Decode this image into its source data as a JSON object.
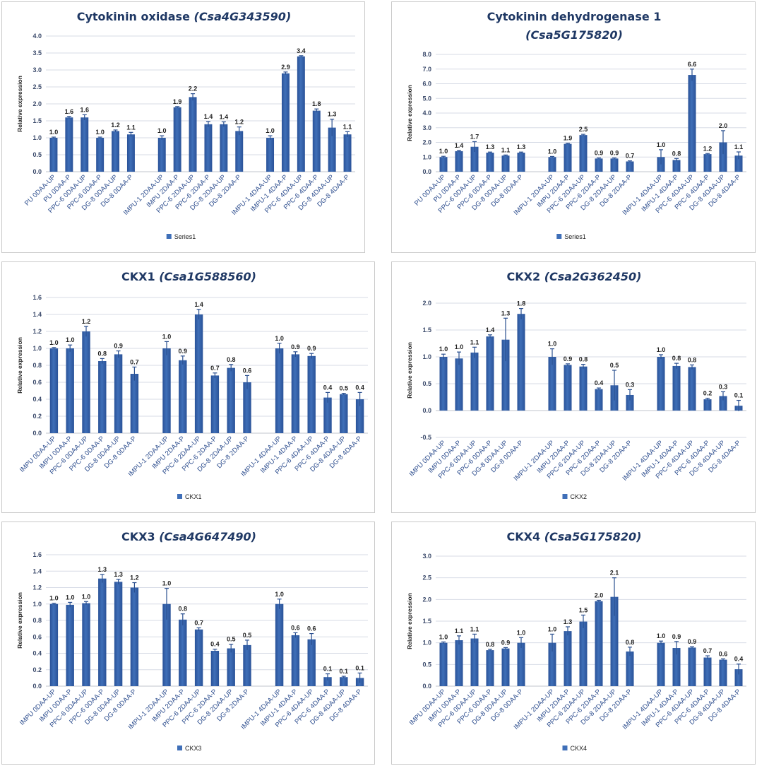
{
  "colors": {
    "bar": "#3f6fb8",
    "bar_dark": "#2a5298",
    "error": "#2a4f8f",
    "title": "#1f3864"
  },
  "chart_data": [
    {
      "type": "bar",
      "title": "Cytokinin oxidase ",
      "title_gene": "(Csa4G343590)",
      "ylabel": "Relative expression",
      "ylim": [
        0,
        4.0
      ],
      "yticks": [
        "0.0",
        "0.5",
        "1.0",
        "1.5",
        "2.0",
        "2.5",
        "3.0",
        "3.5",
        "4.0"
      ],
      "legend": "Series1",
      "groups": [
        6,
        6,
        6
      ],
      "categories": [
        "PU 0DAA-UP",
        "PU 0DAA-P",
        "PPC-6 0DAA-UP",
        "PPC-6 0DAA-P",
        "DG-8 0DAA-UP",
        "DG-8 0DAA-P",
        "IMPU-1 2DAA-UP",
        "IMPU 2DAA-P",
        "PPC-6 2DAA-UP",
        "PPC-6 2DAA-P",
        "DG-8 2DAA-UP",
        "DG-8 2DAA-P",
        "IMPU-1 4DAA-UP",
        "IMPU-1 4DAA-P",
        "PPC-6 4DAA-UP",
        "PPC-6 4DAA-P",
        "DG-8 4DAA-UP",
        "DG-8 4DAA-P"
      ],
      "values": [
        1.0,
        1.6,
        1.6,
        1.0,
        1.2,
        1.1,
        1.0,
        1.9,
        2.2,
        1.4,
        1.4,
        1.2,
        1.0,
        2.9,
        3.4,
        1.8,
        1.3,
        1.1
      ],
      "labels": [
        "1.0",
        "1.6",
        "1.6",
        "1.0",
        "1.2",
        "1.1",
        "1.0",
        "1.9",
        "2.2",
        "1.4",
        "1.4",
        "1.2",
        "1.0",
        "2.9",
        "3.4",
        "1.8",
        "1.3",
        "1.1"
      ],
      "errors": [
        0.02,
        0.03,
        0.08,
        0.02,
        0.03,
        0.06,
        0.06,
        0.02,
        0.1,
        0.08,
        0.07,
        0.12,
        0.06,
        0.04,
        0.02,
        0.05,
        0.25,
        0.08
      ]
    },
    {
      "type": "bar",
      "title": "Cytokinin dehydrogenase 1",
      "title_gene": "(Csa5G175820)",
      "ylabel": "Relative expression",
      "ylim": [
        0,
        8.0
      ],
      "yticks": [
        "0.0",
        "1.0",
        "2.0",
        "3.0",
        "4.0",
        "5.0",
        "6.0",
        "7.0",
        "8.0"
      ],
      "legend": "Series1",
      "groups": [
        6,
        6,
        6
      ],
      "categories": [
        "PU 0DAA-UP",
        "PU 0DAA-P",
        "PPC-6 0DAA-UP",
        "PPC-6 0DAA-P",
        "DG-8 0DAA-UP",
        "DG-8 0DAA-P",
        "IMPU-1 2DAA-UP",
        "IMPU 2DAA-P",
        "PPC-6 2DAA-UP",
        "PPC-6 2DAA-P",
        "DG-8 2DAA-UP",
        "DG-8 2DAA-P",
        "IMPU-1 4DAA-UP",
        "IMPU-1 4DAA-P",
        "PPC-6 4DAA-UP",
        "PPC-6 4DAA-P",
        "DG-8 4DAA-UP",
        "DG-8 4DAA-P"
      ],
      "values": [
        1.0,
        1.4,
        1.7,
        1.3,
        1.1,
        1.3,
        1.0,
        1.9,
        2.5,
        0.9,
        0.9,
        0.7,
        1.0,
        0.8,
        6.6,
        1.2,
        2.0,
        1.1
      ],
      "labels": [
        "1.0",
        "1.4",
        "1.7",
        "1.3",
        "1.1",
        "1.3",
        "1.0",
        "1.9",
        "2.5",
        "0.9",
        "0.9",
        "0.7",
        "1.0",
        "0.8",
        "6.6",
        "1.2",
        "2.0",
        "1.1"
      ],
      "errors": [
        0.05,
        0.05,
        0.35,
        0.04,
        0.04,
        0.04,
        0.04,
        0.04,
        0.05,
        0.04,
        0.04,
        0.04,
        0.5,
        0.1,
        0.4,
        0.04,
        0.8,
        0.25
      ]
    },
    {
      "type": "bar",
      "title": "CKX1 ",
      "title_gene": "(Csa1G588560)",
      "ylabel": "Relative expression",
      "ylim": [
        0,
        1.6
      ],
      "yticks": [
        "0.0",
        "0.2",
        "0.4",
        "0.6",
        "0.8",
        "1.0",
        "1.2",
        "1.4",
        "1.6"
      ],
      "legend": "CKX1",
      "groups": [
        6,
        6,
        6
      ],
      "categories": [
        "IMPU 0DAA-UP",
        "IMPU 0DAA-P",
        "PPC-6 0DAA-UP",
        "PPC-6 0DAA-P",
        "DG-8 0DAA-UP",
        "DG-8 0DAA-P",
        "IMPU-1 2DAA-UP",
        "IMPU 2DAA-P",
        "PPC-6 2DAA-UP",
        "PPC-6 2DAA-P",
        "DG-8 2DAA-UP",
        "DG-8 2DAA-P",
        "IMPU-1 4DAA-UP",
        "IMPU-1 4DAA-P",
        "PPC-6 4DAA-UP",
        "PPC-6 4DAA-P",
        "DG-8 4DAA-UP",
        "DG-8 4DAA-P"
      ],
      "values": [
        1.0,
        1.0,
        1.2,
        0.85,
        0.93,
        0.7,
        1.0,
        0.86,
        1.4,
        0.68,
        0.77,
        0.6,
        1.0,
        0.93,
        0.91,
        0.42,
        0.46,
        0.4
      ],
      "labels": [
        "1.0",
        "1.0",
        "1.2",
        "0.8",
        "0.9",
        "0.7",
        "1.0",
        "0.9",
        "1.4",
        "0.7",
        "0.8",
        "0.6",
        "1.0",
        "0.9",
        "0.9",
        "0.4",
        "0.5",
        "0.4"
      ],
      "errors": [
        0.01,
        0.04,
        0.06,
        0.03,
        0.04,
        0.08,
        0.08,
        0.05,
        0.06,
        0.03,
        0.04,
        0.08,
        0.06,
        0.03,
        0.03,
        0.06,
        0.01,
        0.08
      ]
    },
    {
      "type": "bar",
      "title": "CKX2 ",
      "title_gene": "(Csa2G362450)",
      "ylabel": "Relative expression",
      "ylim": [
        -0.5,
        2.0
      ],
      "yticks": [
        "-0.5",
        "0.0",
        "0.5",
        "1.0",
        "1.5",
        "2.0"
      ],
      "legend": "CKX2",
      "groups": [
        6,
        6,
        6
      ],
      "categories": [
        "IMPU 0DAA-UP",
        "IMPU 0DAA-P",
        "PPC-6 0DAA-UP",
        "PPC-6 0DAA-P",
        "DG-8 0DAA-UP",
        "DG-8 0DAA-P",
        "IMPU-1 2DAA-UP",
        "IMPU 2DAA-P",
        "PPC-6 2DAA-UP",
        "PPC-6 2DAA-P",
        "DG-8 2DAA-UP",
        "DG-8 2DAA-P",
        "IMPU-1 4DAA-UP",
        "IMPU-1 4DAA-P",
        "PPC-6 4DAA-UP",
        "PPC-6 4DAA-P",
        "DG-8 4DAA-UP",
        "DG-8 4DAA-P"
      ],
      "values": [
        1.0,
        0.97,
        1.08,
        1.38,
        1.32,
        1.8,
        1.0,
        0.85,
        0.82,
        0.4,
        0.47,
        0.29,
        1.0,
        0.83,
        0.81,
        0.21,
        0.27,
        0.09
      ],
      "labels": [
        "1.0",
        "1.0",
        "1.1",
        "1.4",
        "1.3",
        "1.8",
        "1.0",
        "0.9",
        "0.8",
        "0.4",
        "0.5",
        "0.3",
        "1.0",
        "0.8",
        "0.8",
        "0.2",
        "0.3",
        "0.1"
      ],
      "errors": [
        0.05,
        0.12,
        0.1,
        0.03,
        0.4,
        0.1,
        0.15,
        0.02,
        0.04,
        0.02,
        0.28,
        0.1,
        0.04,
        0.05,
        0.04,
        0.02,
        0.08,
        0.1
      ]
    },
    {
      "type": "bar",
      "title": "CKX3 ",
      "title_gene": "(Csa4G647490)",
      "ylabel": "Relative expression",
      "ylim": [
        0,
        1.6
      ],
      "yticks": [
        "0.0",
        "0.2",
        "0.4",
        "0.6",
        "0.8",
        "1.0",
        "1.2",
        "1.4",
        "1.6"
      ],
      "legend": "CKX3",
      "groups": [
        6,
        6,
        6
      ],
      "categories": [
        "IMPU 0DAA-UP",
        "IMPU 0DAA-P",
        "PPC-6 0DAA-UP",
        "PPC-6 0DAA-P",
        "DG-8 0DAA-UP",
        "DG-8 0DAA-P",
        "IMPU-1 2DAA-UP",
        "IMPU 2DAA-P",
        "PPC-6 2DAA-UP",
        "PPC-6 2DAA-P",
        "DG-8 2DAA-UP",
        "DG-8 2DAA-P",
        "IMPU-1 4DAA-UP",
        "IMPU-1 4DAA-P",
        "PPC-6 4DAA-UP",
        "PPC-6 4DAA-P",
        "DG-8 4DAA-UP",
        "DG-8 4DAA-P"
      ],
      "values": [
        1.0,
        0.99,
        1.01,
        1.31,
        1.27,
        1.2,
        1.0,
        0.81,
        0.69,
        0.43,
        0.46,
        0.5,
        1.0,
        0.62,
        0.57,
        0.11,
        0.11,
        0.1
      ],
      "labels": [
        "1.0",
        "1.0",
        "1.0",
        "1.3",
        "1.3",
        "1.2",
        "1.0",
        "0.8",
        "0.7",
        "0.4",
        "0.5",
        "0.5",
        "1.0",
        "0.6",
        "0.6",
        "0.1",
        "0.1",
        "0.1"
      ],
      "errors": [
        0.01,
        0.03,
        0.02,
        0.05,
        0.03,
        0.06,
        0.19,
        0.07,
        0.02,
        0.02,
        0.05,
        0.06,
        0.06,
        0.03,
        0.07,
        0.04,
        0.01,
        0.06
      ]
    },
    {
      "type": "bar",
      "title": "CKX4 ",
      "title_gene": "(Csa5G175820)",
      "ylabel": "Relative expression",
      "ylim": [
        0,
        3.0
      ],
      "yticks": [
        "0.0",
        "0.5",
        "1.0",
        "1.5",
        "2.0",
        "2.5",
        "3.0"
      ],
      "legend": "CKX4",
      "groups": [
        6,
        6,
        6
      ],
      "categories": [
        "IMPU 0DAA-UP",
        "IMPU 0DAA-P",
        "PPC-6 0DAA-UP",
        "PPC-6 0DAA-P",
        "DG-8 0DAA-UP",
        "DG-8 0DAA-P",
        "IMPU-1 2DAA-UP",
        "IMPU 2DAA-P",
        "PPC-6 2DAA-UP",
        "PPC-6 2DAA-P",
        "DG-8 2DAA-UP",
        "DG-8 2DAA-P",
        "IMPU-1 4DAA-UP",
        "IMPU-1 4DAA-P",
        "PPC-6 4DAA-UP",
        "PPC-6 4DAA-P",
        "DG-8 4DAA-UP",
        "DG-8 4DAA-P"
      ],
      "values": [
        1.0,
        1.06,
        1.1,
        0.83,
        0.87,
        1.0,
        1.0,
        1.27,
        1.49,
        1.96,
        2.06,
        0.8,
        1.0,
        0.88,
        0.89,
        0.66,
        0.61,
        0.39
      ],
      "labels": [
        "1.0",
        "1.1",
        "1.1",
        "0.8",
        "0.9",
        "1.0",
        "1.0",
        "1.3",
        "1.5",
        "2.0",
        "2.1",
        "0.8",
        "1.0",
        "0.9",
        "0.9",
        "0.7",
        "0.6",
        "0.4"
      ],
      "errors": [
        0.02,
        0.1,
        0.1,
        0.02,
        0.02,
        0.12,
        0.2,
        0.1,
        0.15,
        0.02,
        0.44,
        0.1,
        0.04,
        0.15,
        0.02,
        0.04,
        0.02,
        0.12
      ]
    }
  ]
}
